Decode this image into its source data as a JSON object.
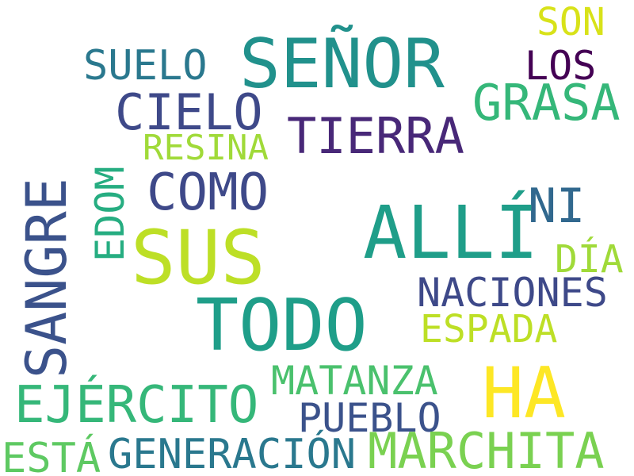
{
  "word_cloud": {
    "words": [
      {
        "text": "SEÑOR",
        "color": "#21918c"
      },
      {
        "text": "SON",
        "color": "#d8e219"
      },
      {
        "text": "SUELO",
        "color": "#2a788e"
      },
      {
        "text": "LOS",
        "color": "#440154"
      },
      {
        "text": "GRASA",
        "color": "#35b779"
      },
      {
        "text": "CIELO",
        "color": "#3e4989"
      },
      {
        "text": "TIERRA",
        "color": "#482878"
      },
      {
        "text": "RESINA",
        "color": "#a0da39"
      },
      {
        "text": "SANGRE",
        "color": "#3b528b"
      },
      {
        "text": "EDOM",
        "color": "#26ad81"
      },
      {
        "text": "COMO",
        "color": "#3e4989"
      },
      {
        "text": "NI",
        "color": "#31688e"
      },
      {
        "text": "ALLÍ",
        "color": "#1f9e89"
      },
      {
        "text": "SUS",
        "color": "#bddf26"
      },
      {
        "text": "DÍA",
        "color": "#a0da39"
      },
      {
        "text": "NACIONES",
        "color": "#3e4989"
      },
      {
        "text": "TODO",
        "color": "#1f9e89"
      },
      {
        "text": "ESPADA",
        "color": "#bddf26"
      },
      {
        "text": "MATANZA",
        "color": "#4ac16d"
      },
      {
        "text": "HA",
        "color": "#fde725"
      },
      {
        "text": "EJÉRCITO",
        "color": "#35b779"
      },
      {
        "text": "PUEBLO",
        "color": "#3b528b"
      },
      {
        "text": "ESTÁ",
        "color": "#5ec962"
      },
      {
        "text": "GENERACIÓN",
        "color": "#2a788e"
      },
      {
        "text": "MARCHITA",
        "color": "#7ad151"
      }
    ]
  }
}
